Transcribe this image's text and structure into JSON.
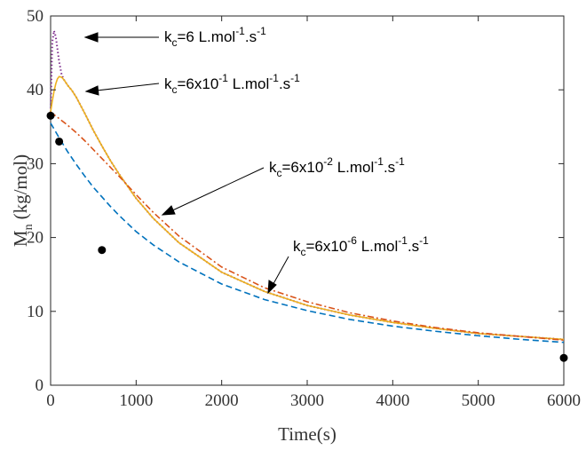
{
  "chart_data": {
    "type": "line",
    "title": "",
    "xlabel": "Time(s)",
    "ylabel": "M_n (kg/mol)",
    "ylabel_main": "M",
    "ylabel_sub": "n",
    "ylabel_unit": "(kg/mol)",
    "xlim": [
      0,
      6000
    ],
    "ylim": [
      0,
      50
    ],
    "x_ticks": [
      "0",
      "1000",
      "2000",
      "3000",
      "4000",
      "5000",
      "6000"
    ],
    "y_ticks": [
      "0",
      "10",
      "20",
      "30",
      "40",
      "50"
    ],
    "grid": false,
    "legend": "none",
    "annotations": [
      {
        "prefix": "k",
        "sub": "c",
        "mid": "=6 L.mol",
        "sup1": "-1",
        "tail": ".s",
        "sup2": "-1"
      },
      {
        "prefix": "k",
        "sub": "c",
        "mid": "=6x10",
        "sup0": "-1",
        "mid2": " L.mol",
        "sup1": "-1",
        "tail": ".s",
        "sup2": "-1"
      },
      {
        "prefix": "k",
        "sub": "c",
        "mid": "=6x10",
        "sup0": "-2",
        "mid2": " L.mol",
        "sup1": "-1",
        "tail": ".s",
        "sup2": "-1"
      },
      {
        "prefix": "k",
        "sub": "c",
        "mid": "=6x10",
        "sup0": "-6",
        "mid2": " L.mol",
        "sup1": "-1",
        "tail": ".s",
        "sup2": "-1"
      }
    ],
    "series": [
      {
        "style": "dotted",
        "color": "#7e2f8e",
        "x": [
          0,
          20,
          40,
          60,
          80,
          100,
          130,
          160,
          200,
          250,
          300,
          400,
          500,
          600,
          700,
          800,
          1000,
          1200,
          1500,
          2000,
          2500,
          3000,
          3500,
          4000,
          4500,
          5000,
          5500,
          6000
        ],
        "y": [
          37.0,
          46.5,
          48.0,
          47.2,
          45.5,
          43.8,
          42.0,
          41.3,
          40.6,
          39.9,
          39.0,
          36.8,
          34.5,
          32.4,
          30.4,
          28.6,
          25.3,
          22.6,
          19.3,
          15.3,
          12.7,
          10.8,
          9.5,
          8.5,
          7.7,
          7.0,
          6.6,
          6.2
        ]
      },
      {
        "style": "solid",
        "color": "#edb120",
        "x": [
          0,
          20,
          40,
          60,
          80,
          100,
          130,
          160,
          200,
          250,
          300,
          400,
          500,
          600,
          700,
          800,
          1000,
          1200,
          1500,
          2000,
          2500,
          3000,
          3500,
          4000,
          4500,
          5000,
          5500,
          6000
        ],
        "y": [
          37.0,
          38.5,
          39.8,
          40.8,
          41.5,
          41.8,
          41.7,
          41.3,
          40.6,
          39.9,
          39.0,
          36.8,
          34.5,
          32.4,
          30.4,
          28.6,
          25.3,
          22.6,
          19.3,
          15.3,
          12.7,
          10.8,
          9.5,
          8.5,
          7.7,
          7.0,
          6.6,
          6.2
        ]
      },
      {
        "style": "dashdot",
        "color": "#d95319",
        "x": [
          0,
          100,
          200,
          300,
          400,
          500,
          600,
          700,
          800,
          1000,
          1200,
          1500,
          2000,
          2500,
          3000,
          3500,
          4000,
          4500,
          5000,
          5500,
          6000
        ],
        "y": [
          37.0,
          36.1,
          35.2,
          34.2,
          33.1,
          31.9,
          30.7,
          29.5,
          28.3,
          25.8,
          23.4,
          20.2,
          16.0,
          13.2,
          11.3,
          9.8,
          8.7,
          7.8,
          7.1,
          6.6,
          6.1
        ]
      },
      {
        "style": "dashed",
        "color": "#0072bd",
        "x": [
          0,
          100,
          200,
          300,
          400,
          500,
          600,
          700,
          800,
          1000,
          1200,
          1500,
          2000,
          2500,
          3000,
          3500,
          4000,
          4500,
          5000,
          5500,
          6000
        ],
        "y": [
          35.5,
          33.5,
          31.6,
          29.9,
          28.3,
          26.8,
          25.5,
          24.2,
          23.0,
          20.8,
          19.0,
          16.7,
          13.7,
          11.6,
          10.1,
          8.9,
          8.0,
          7.3,
          6.7,
          6.2,
          5.8
        ]
      },
      {
        "style": "markers",
        "color": "#000000",
        "x": [
          0,
          100,
          600,
          6000
        ],
        "y": [
          36.5,
          33.0,
          18.3,
          3.7
        ]
      }
    ]
  }
}
